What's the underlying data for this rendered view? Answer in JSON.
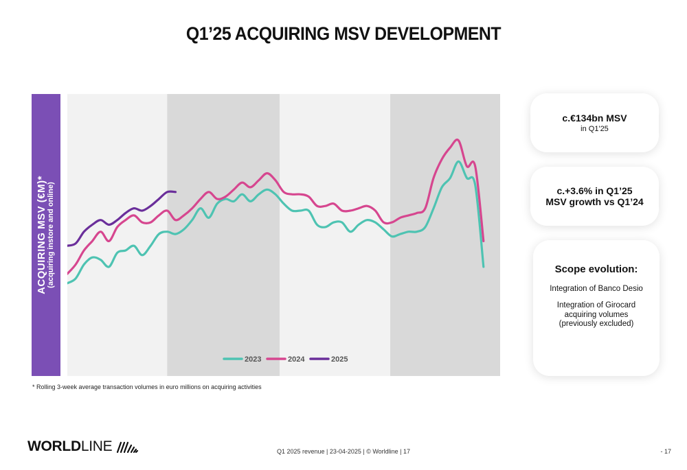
{
  "title": "Q1’25 ACQUIRING MSV DEVELOPMENT",
  "chart_data": {
    "type": "line",
    "ylabel": "ACQUIRING MSV (€M)*",
    "ylabel_sub": "(acquiring instore and online)",
    "xlabel": "",
    "x_ticks": "none",
    "grid": false,
    "legend_position": "bottom-center",
    "xlim": [
      0,
      52
    ],
    "ylim": [
      0,
      100
    ],
    "shaded_bands": [
      [
        12.0,
        25.5
      ],
      [
        38.8,
        52
      ]
    ],
    "series": [
      {
        "name": "2023",
        "color": "#4ec3b2",
        "values": [
          25,
          27,
          33,
          36,
          35,
          32,
          38,
          39,
          41,
          37,
          41,
          46,
          47,
          46,
          48,
          52,
          57,
          53,
          59,
          61,
          60,
          63,
          60,
          63,
          65,
          63,
          59,
          56,
          56,
          56,
          50,
          49,
          51,
          51,
          47,
          50,
          52,
          51,
          48,
          45,
          46,
          47,
          47,
          49,
          57,
          66,
          70,
          77,
          70,
          67,
          32
        ]
      },
      {
        "name": "2024",
        "color": "#d6468f",
        "values": [
          29,
          33,
          39,
          43,
          47,
          43,
          49,
          52,
          54,
          51,
          51,
          54,
          56,
          52,
          54,
          57,
          61,
          64,
          61,
          62,
          65,
          68,
          66,
          69,
          72,
          69,
          64,
          63,
          63,
          62,
          58,
          58,
          59,
          56,
          56,
          57,
          58,
          56,
          51,
          51,
          53,
          54,
          55,
          57,
          70,
          78,
          83,
          86,
          75,
          75,
          43
        ]
      },
      {
        "name": "2025",
        "color": "#6a2e9a",
        "values": [
          41,
          42,
          47,
          50,
          52,
          50,
          52,
          55,
          57,
          56,
          58,
          61,
          64,
          64
        ]
      }
    ]
  },
  "footnote": "* Rolling 3-week average transaction volumes in euro millions on acquiring activities",
  "cards": {
    "msv": {
      "headline": "c.€134bn MSV",
      "sub": "in Q1'25"
    },
    "growth": {
      "line1": "c.+3.6% in Q1’25",
      "line2": "MSV growth vs Q1’24"
    },
    "scope": {
      "title": "Scope evolution:",
      "item1": "Integration of Banco Desio",
      "item2": "Integration of Girocard acquiring volumes (previously excluded)"
    }
  },
  "logo": {
    "bold": "WORLD",
    "light": "LINE"
  },
  "footer": {
    "center": "Q1 2025 revenue | 23-04-2025 | © Worldline | 17",
    "page": "- 17"
  },
  "colors": {
    "accent_purple": "#7b4fb5",
    "band_light": "#f2f2f2",
    "band_dark": "#d9d9d9"
  }
}
